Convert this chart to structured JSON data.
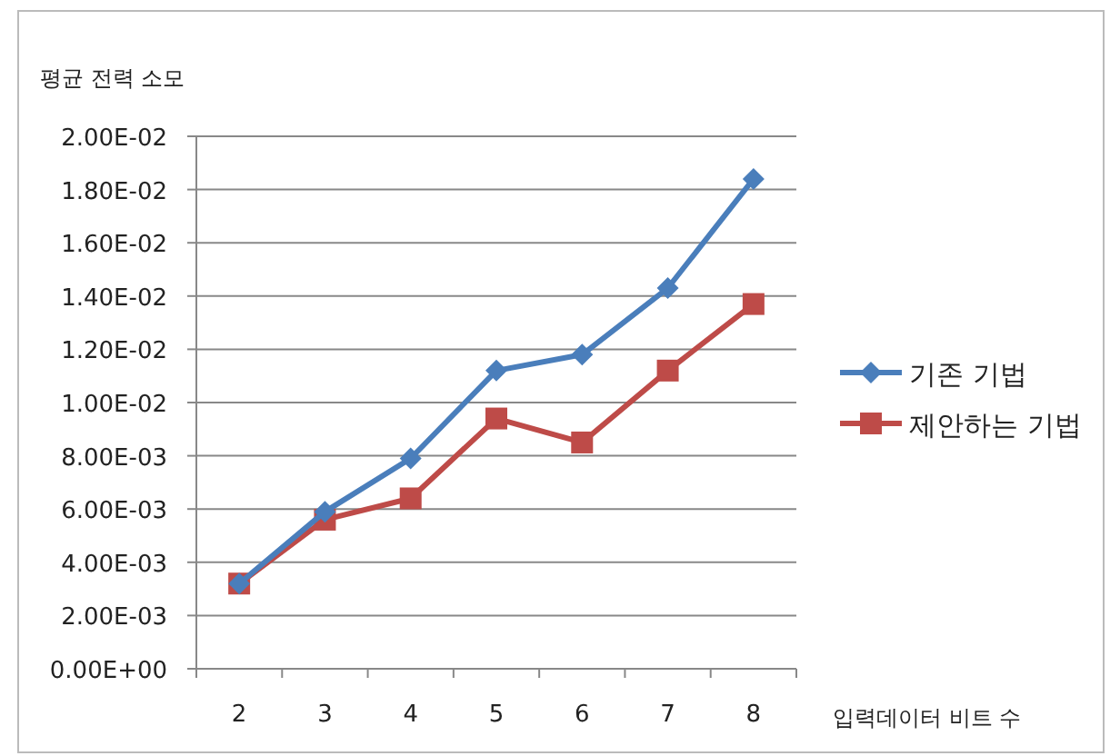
{
  "chart_data": {
    "type": "line",
    "ylabel": "평균 전력 소모",
    "xlabel": "입력데이터 비트 수",
    "categories": [
      "2",
      "3",
      "4",
      "5",
      "6",
      "7",
      "8"
    ],
    "series": [
      {
        "name": "기존 기법",
        "color": "#4a7ebb",
        "marker": "diamond",
        "values": [
          0.0032,
          0.0059,
          0.0079,
          0.0112,
          0.0118,
          0.0143,
          0.0184
        ]
      },
      {
        "name": "제안하는 기법",
        "color": "#be4b48",
        "marker": "square",
        "values": [
          0.0032,
          0.0056,
          0.0064,
          0.0094,
          0.0085,
          0.0112,
          0.0137
        ]
      }
    ],
    "ylim": [
      0,
      0.02
    ],
    "yticks": [
      {
        "value": 0,
        "label": "0.00E+00"
      },
      {
        "value": 0.002,
        "label": "2.00E-03"
      },
      {
        "value": 0.004,
        "label": "4.00E-03"
      },
      {
        "value": 0.006,
        "label": "6.00E-03"
      },
      {
        "value": 0.008,
        "label": "8.00E-03"
      },
      {
        "value": 0.01,
        "label": "1.00E-02"
      },
      {
        "value": 0.012,
        "label": "1.20E-02"
      },
      {
        "value": 0.014,
        "label": "1.40E-02"
      },
      {
        "value": 0.016,
        "label": "1.60E-02"
      },
      {
        "value": 0.018,
        "label": "1.80E-02"
      },
      {
        "value": 0.02,
        "label": "2.00E-02"
      }
    ],
    "grid": "y",
    "legend": "right",
    "line_style": "solid"
  }
}
